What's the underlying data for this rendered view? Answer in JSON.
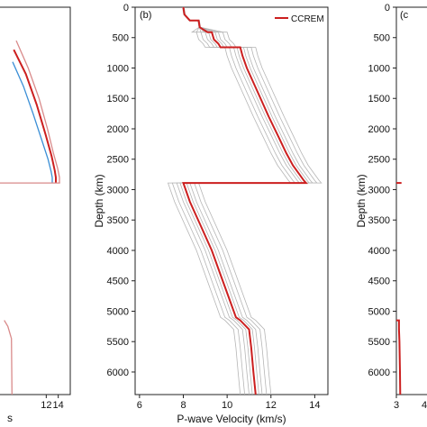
{
  "colors": {
    "model": "#cc1f1f",
    "ensemble": "#b5b5b5",
    "blue": "#3b8fd6",
    "pink": "#d98a8a",
    "frame": "#222222"
  },
  "chart_data": [
    {
      "type": "line",
      "panel_label": "",
      "xlabel": "",
      "ylabel": "",
      "xlim": [
        4,
        16
      ],
      "ylim": [
        0,
        6371
      ],
      "y_inverted": true,
      "x_ticks": [
        12,
        14
      ],
      "y_ticks": [],
      "series": [
        {
          "name": "",
          "role": "pink",
          "x": [
            7.0,
            9.0,
            10.8,
            12.2,
            13.2,
            13.9,
            14.2,
            14.2
          ],
          "y": [
            550,
            1000,
            1500,
            2000,
            2400,
            2650,
            2800,
            2891
          ]
        },
        {
          "name": "",
          "role": "red",
          "x": [
            6.6,
            8.6,
            10.4,
            11.9,
            12.9,
            13.4,
            13.6,
            13.6
          ],
          "y": [
            700,
            1100,
            1600,
            2100,
            2450,
            2680,
            2800,
            2891
          ]
        },
        {
          "name": "",
          "role": "blue",
          "x": [
            6.4,
            8.2,
            9.8,
            11.3,
            12.3,
            12.8,
            13.0,
            13.0
          ],
          "y": [
            900,
            1300,
            1750,
            2200,
            2500,
            2700,
            2800,
            2891
          ]
        },
        {
          "name": "",
          "role": "pink-flat",
          "x": [
            4.0,
            14.3
          ],
          "y": [
            2891,
            2891
          ]
        },
        {
          "name": "",
          "role": "pink-inner",
          "x": [
            5.0,
            5.6,
            6.2,
            6.3
          ],
          "y": [
            5150,
            5250,
            5450,
            6371
          ]
        }
      ],
      "trailing_text": "s"
    },
    {
      "type": "line",
      "panel_label": "(b)",
      "xlabel": "P-wave Velocity (km/s)",
      "ylabel": "Depth (km)",
      "xlim": [
        5.8,
        14.6
      ],
      "ylim": [
        0,
        6371
      ],
      "y_inverted": true,
      "x_ticks": [
        6,
        8,
        10,
        12,
        14
      ],
      "y_ticks": [
        0,
        500,
        1000,
        1500,
        2000,
        2500,
        3000,
        3500,
        4000,
        4500,
        5000,
        5500,
        6000
      ],
      "legend": [
        {
          "name": "CCREM",
          "color": "#cc1f1f"
        }
      ],
      "series": [
        {
          "name": "CCREM",
          "role": "model",
          "x": [
            8.0,
            8.05,
            8.3,
            8.7,
            8.75,
            9.1,
            9.3,
            9.4,
            9.6,
            9.7,
            10.6,
            10.7,
            10.9,
            11.4,
            11.9,
            12.3,
            12.7,
            13.0,
            13.3,
            13.5,
            13.6,
            13.6,
            8.0,
            8.3,
            8.8,
            9.3,
            9.7,
            10.1,
            10.4,
            10.6,
            10.6,
            11.0,
            11.1,
            11.2,
            11.3
          ],
          "y": [
            0,
            120,
            220,
            220,
            330,
            410,
            410,
            530,
            600,
            660,
            660,
            800,
            1000,
            1400,
            1800,
            2100,
            2400,
            2600,
            2750,
            2850,
            2891,
            2891,
            2891,
            3200,
            3600,
            4000,
            4400,
            4800,
            5100,
            5150,
            5150,
            5300,
            5600,
            6000,
            6371
          ]
        }
      ],
      "ensemble_offsets": [
        -0.7,
        -0.5,
        -0.3,
        -0.15,
        0.15,
        0.3,
        0.5,
        0.7
      ]
    },
    {
      "type": "line",
      "panel_label": "(c",
      "xlabel": "",
      "ylabel": "Depth (km)",
      "xlim": [
        3,
        10
      ],
      "ylim": [
        0,
        6371
      ],
      "y_inverted": true,
      "x_ticks": [
        3
      ],
      "x_ticks_partial": [
        "4"
      ],
      "y_ticks": [
        0,
        500,
        1000,
        1500,
        2000,
        2500,
        3000,
        3500,
        4000,
        4500,
        5000,
        5500,
        6000
      ],
      "series": [
        {
          "name": "",
          "role": "model",
          "x": [
            3.0,
            4.0
          ],
          "y": [
            2891,
            2891
          ]
        },
        {
          "name": "",
          "role": "model",
          "x": [
            3.0,
            3.5,
            3.5,
            3.6,
            3.7,
            3.75
          ],
          "y": [
            5150,
            5150,
            5300,
            5500,
            6000,
            6371
          ]
        }
      ]
    }
  ]
}
